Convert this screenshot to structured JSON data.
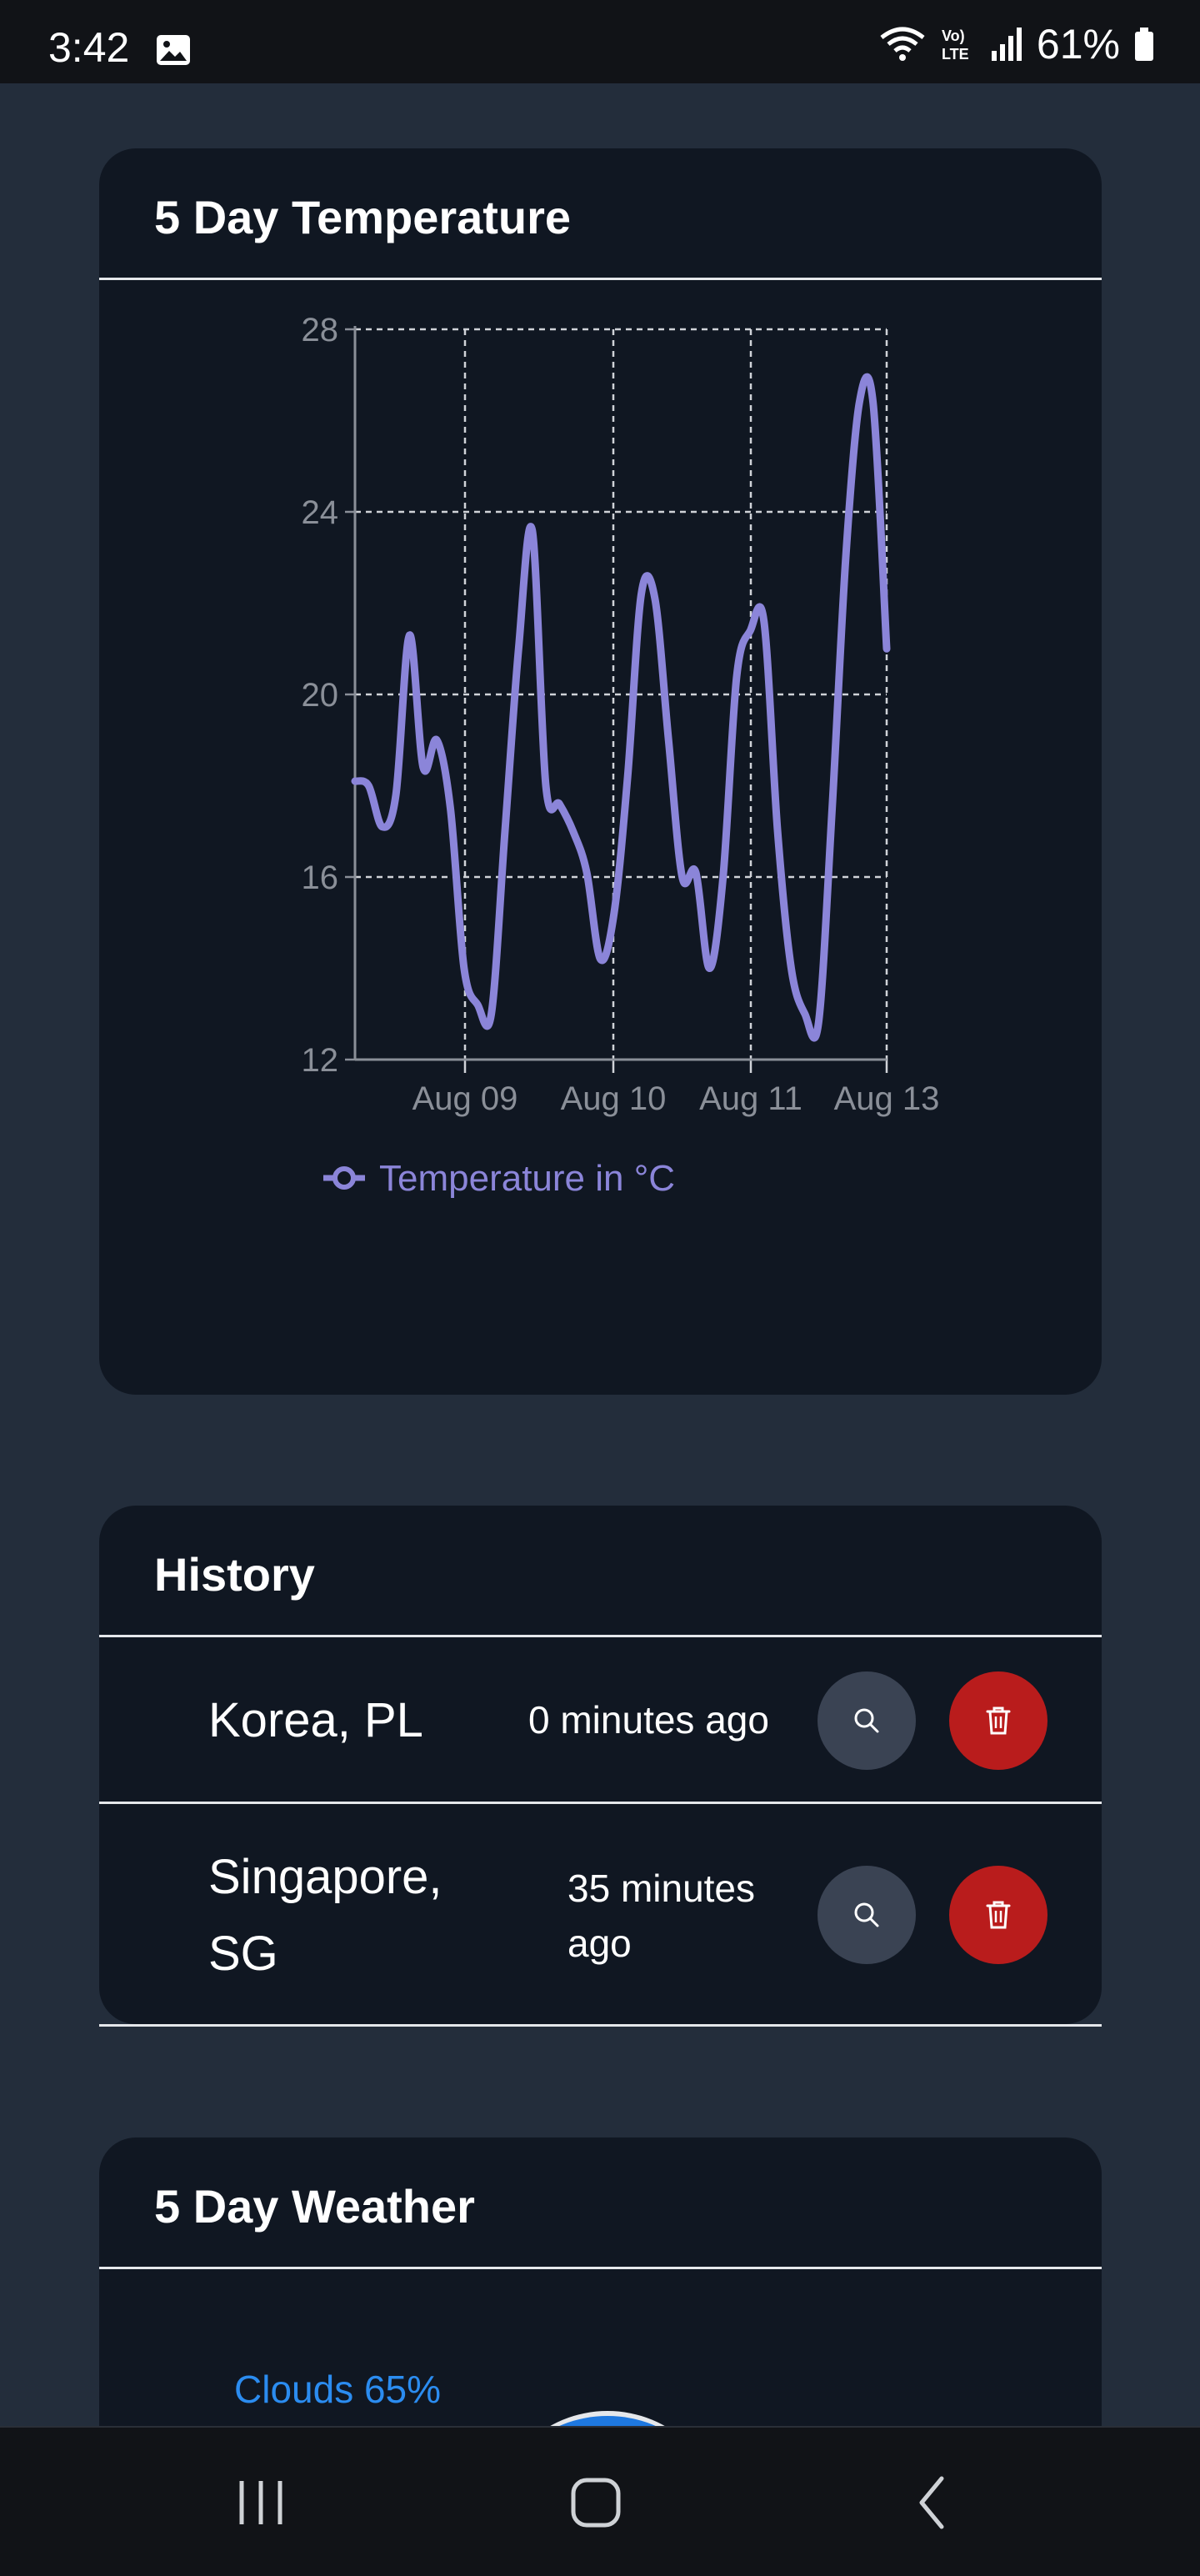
{
  "status_bar": {
    "time": "3:42",
    "battery": "61%",
    "icons": [
      "image-icon",
      "wifi-icon",
      "volte-icon",
      "signal-icon",
      "battery-icon"
    ]
  },
  "temperature_card": {
    "title": "5 Day Temperature"
  },
  "chart_data": {
    "type": "line",
    "y_ticks": [
      "28",
      "24",
      "20",
      "16",
      "12"
    ],
    "x_ticks": [
      "Aug 09",
      "Aug 10",
      "Aug 11",
      "Aug 13"
    ],
    "ylim": [
      12,
      28
    ],
    "grid": true,
    "legend_position": "bottom",
    "series": [
      {
        "name": "Temperature in °C",
        "color": "#8b85d9",
        "values": [
          18.1,
          18.0,
          17.1,
          17.8,
          21.3,
          18.4,
          19.0,
          17.5,
          14.0,
          13.2,
          13.0,
          17.0,
          21.0,
          23.6,
          18.0,
          17.6,
          17.0,
          16.1,
          14.2,
          15.2,
          18.2,
          22.2,
          22.1,
          19.0,
          16.0,
          16.1,
          14.0,
          16.0,
          20.4,
          21.4,
          21.6,
          17.0,
          14.0,
          13.0,
          12.8,
          17.5,
          23.0,
          26.4,
          26.4,
          21.0
        ]
      }
    ],
    "legend": [
      "Temperature in °C"
    ]
  },
  "history_card": {
    "title": "History",
    "rows": [
      {
        "city": "Korea, PL",
        "ago": "0 minutes ago"
      },
      {
        "city": "Singapore, SG",
        "ago": "35 minutes ago"
      }
    ]
  },
  "weather_card": {
    "title": "5 Day Weather",
    "first_label": "Clouds 65%"
  },
  "nav_bar": {
    "buttons": [
      "recent-apps-icon",
      "home-icon",
      "back-icon"
    ]
  }
}
